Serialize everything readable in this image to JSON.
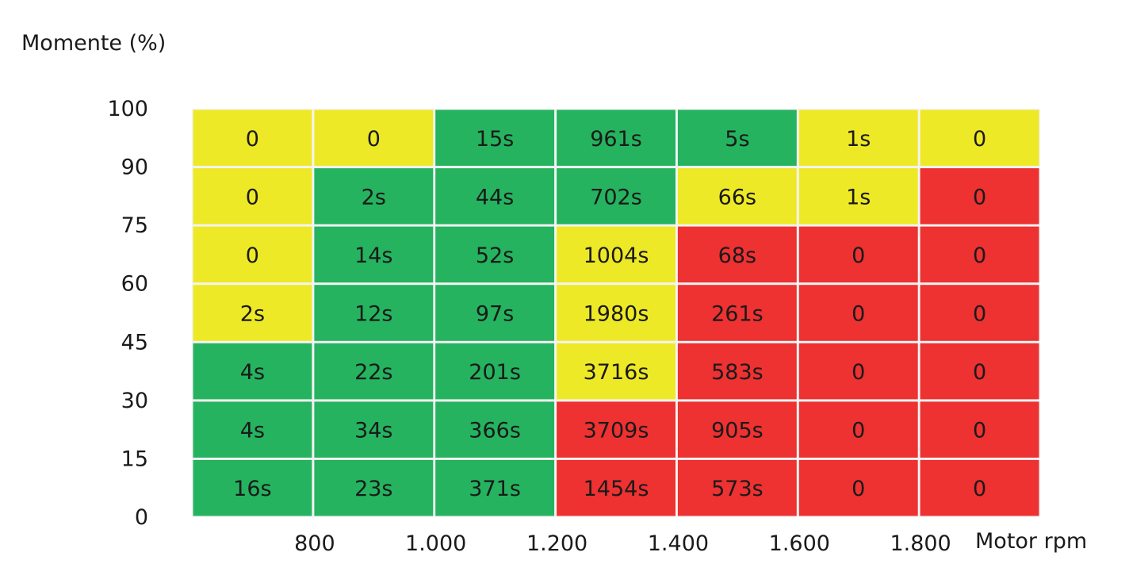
{
  "chart_data": {
    "type": "heatmap",
    "ylabel": "Momente (%)",
    "xlabel": "Motor rpm",
    "y_ticks": [
      "100",
      "90",
      "75",
      "60",
      "45",
      "30",
      "15",
      "0"
    ],
    "x_ticks": [
      "800",
      "1.000",
      "1.200",
      "1.400",
      "1.600",
      "1.800"
    ],
    "colors": {
      "green": "#25b35f",
      "yellow": "#eee926",
      "red": "#ee3131"
    },
    "rows": [
      {
        "cells": [
          {
            "label": "0",
            "color": "yellow"
          },
          {
            "label": "0",
            "color": "yellow"
          },
          {
            "label": "15s",
            "color": "green"
          },
          {
            "label": "961s",
            "color": "green"
          },
          {
            "label": "5s",
            "color": "green"
          },
          {
            "label": "1s",
            "color": "yellow"
          },
          {
            "label": "0",
            "color": "yellow"
          }
        ]
      },
      {
        "cells": [
          {
            "label": "0",
            "color": "yellow"
          },
          {
            "label": "2s",
            "color": "green"
          },
          {
            "label": "44s",
            "color": "green"
          },
          {
            "label": "702s",
            "color": "green"
          },
          {
            "label": "66s",
            "color": "yellow"
          },
          {
            "label": "1s",
            "color": "yellow"
          },
          {
            "label": "0",
            "color": "red"
          }
        ]
      },
      {
        "cells": [
          {
            "label": "0",
            "color": "yellow"
          },
          {
            "label": "14s",
            "color": "green"
          },
          {
            "label": "52s",
            "color": "green"
          },
          {
            "label": "1004s",
            "color": "yellow"
          },
          {
            "label": "68s",
            "color": "red"
          },
          {
            "label": "0",
            "color": "red"
          },
          {
            "label": "0",
            "color": "red"
          }
        ]
      },
      {
        "cells": [
          {
            "label": "2s",
            "color": "yellow"
          },
          {
            "label": "12s",
            "color": "green"
          },
          {
            "label": "97s",
            "color": "green"
          },
          {
            "label": "1980s",
            "color": "yellow"
          },
          {
            "label": "261s",
            "color": "red"
          },
          {
            "label": "0",
            "color": "red"
          },
          {
            "label": "0",
            "color": "red"
          }
        ]
      },
      {
        "cells": [
          {
            "label": "4s",
            "color": "green"
          },
          {
            "label": "22s",
            "color": "green"
          },
          {
            "label": "201s",
            "color": "green"
          },
          {
            "label": "3716s",
            "color": "yellow"
          },
          {
            "label": "583s",
            "color": "red"
          },
          {
            "label": "0",
            "color": "red"
          },
          {
            "label": "0",
            "color": "red"
          }
        ]
      },
      {
        "cells": [
          {
            "label": "4s",
            "color": "green"
          },
          {
            "label": "34s",
            "color": "green"
          },
          {
            "label": "366s",
            "color": "green"
          },
          {
            "label": "3709s",
            "color": "red"
          },
          {
            "label": "905s",
            "color": "red"
          },
          {
            "label": "0",
            "color": "red"
          },
          {
            "label": "0",
            "color": "red"
          }
        ]
      },
      {
        "cells": [
          {
            "label": "16s",
            "color": "green"
          },
          {
            "label": "23s",
            "color": "green"
          },
          {
            "label": "371s",
            "color": "green"
          },
          {
            "label": "1454s",
            "color": "red"
          },
          {
            "label": "573s",
            "color": "red"
          },
          {
            "label": "0",
            "color": "red"
          },
          {
            "label": "0",
            "color": "red"
          }
        ]
      }
    ]
  }
}
